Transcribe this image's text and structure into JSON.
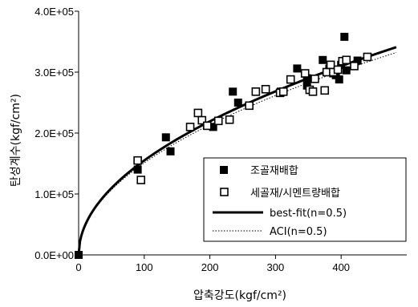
{
  "chart_data": {
    "type": "scatter",
    "title": "",
    "xlabel": "압축강도(kgf/cm²)",
    "ylabel": "탄성계수(kgf/cm²)",
    "xlim": [
      0,
      500
    ],
    "ylim": [
      0,
      400000
    ],
    "x_ticks": [
      0,
      100,
      200,
      300,
      400
    ],
    "x_tick_labels": [
      "0",
      "100",
      "200",
      "300",
      "400"
    ],
    "y_ticks": [
      0,
      100000,
      200000,
      300000,
      400000
    ],
    "y_tick_labels": [
      "0.0E+00",
      "1.0E+05",
      "2.0E+05",
      "3.0E+05",
      "4.0E+05"
    ],
    "grid": false,
    "legend_position": "lower-right",
    "series": [
      {
        "name": "조골재배합",
        "kind": "points",
        "marker": "filled-square",
        "color": "#000000",
        "points": [
          [
            0,
            0
          ],
          [
            90,
            140000
          ],
          [
            133,
            193000
          ],
          [
            140,
            170000
          ],
          [
            205,
            210000
          ],
          [
            235,
            268000
          ],
          [
            243,
            250000
          ],
          [
            308,
            268000
          ],
          [
            333,
            306000
          ],
          [
            348,
            278000
          ],
          [
            348,
            290000
          ],
          [
            372,
            320000
          ],
          [
            382,
            306000
          ],
          [
            388,
            298000
          ],
          [
            392,
            295000
          ],
          [
            397,
            288000
          ],
          [
            400,
            312000
          ],
          [
            405,
            358000
          ],
          [
            408,
            303000
          ],
          [
            425,
            319000
          ]
        ]
      },
      {
        "name": "세골재/시멘트량배합",
        "kind": "points",
        "marker": "open-square",
        "color": "#000000",
        "points": [
          [
            90,
            155000
          ],
          [
            95,
            123000
          ],
          [
            170,
            210000
          ],
          [
            182,
            233000
          ],
          [
            188,
            221000
          ],
          [
            196,
            212000
          ],
          [
            213,
            220000
          ],
          [
            230,
            222000
          ],
          [
            260,
            245000
          ],
          [
            270,
            268000
          ],
          [
            285,
            272000
          ],
          [
            307,
            266000
          ],
          [
            312,
            268000
          ],
          [
            323,
            288000
          ],
          [
            345,
            298000
          ],
          [
            352,
            271000
          ],
          [
            357,
            268000
          ],
          [
            360,
            289000
          ],
          [
            375,
            270000
          ],
          [
            378,
            300000
          ],
          [
            384,
            312000
          ],
          [
            388,
            300000
          ],
          [
            395,
            304000
          ],
          [
            402,
            318000
          ],
          [
            408,
            320000
          ],
          [
            420,
            310000
          ],
          [
            440,
            325000
          ]
        ]
      },
      {
        "name": "best-fit(n=0.5)",
        "kind": "curve",
        "line_style": "solid",
        "color": "#000000",
        "coefficient": 15500,
        "exponent": 0.5
      },
      {
        "name": "ACI(n=0.5)",
        "kind": "curve",
        "line_style": "dotted",
        "color": "#000000",
        "coefficient": 15100,
        "exponent": 0.5
      }
    ]
  }
}
